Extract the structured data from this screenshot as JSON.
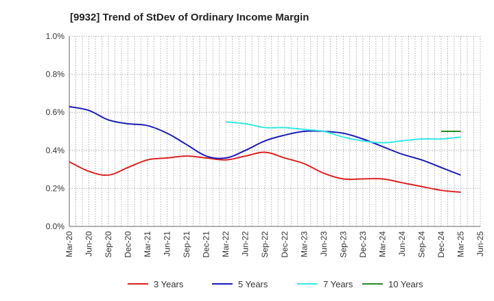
{
  "chart_data": {
    "type": "line",
    "title": "[9932]  Trend of StDev of Ordinary Income Margin",
    "xlabel": "",
    "ylabel": "",
    "ylim": [
      0,
      0.01
    ],
    "yticks": [
      {
        "value": 0.0,
        "label": "0.0%"
      },
      {
        "value": 0.002,
        "label": "0.2%"
      },
      {
        "value": 0.004,
        "label": "0.4%"
      },
      {
        "value": 0.006,
        "label": "0.6%"
      },
      {
        "value": 0.008,
        "label": "0.8%"
      },
      {
        "value": 0.01,
        "label": "1.0%"
      }
    ],
    "x_categories": [
      "Mar-20",
      "Jun-20",
      "Sep-20",
      "Dec-20",
      "Mar-21",
      "Jun-21",
      "Sep-21",
      "Dec-21",
      "Mar-22",
      "Jun-22",
      "Sep-22",
      "Dec-22",
      "Mar-23",
      "Jun-23",
      "Sep-23",
      "Dec-23",
      "Mar-24",
      "Jun-24",
      "Sep-24",
      "Dec-24",
      "Mar-25",
      "Jun-25"
    ],
    "grid": true,
    "legend_position": "bottom",
    "series": [
      {
        "name": "3 Years",
        "color": "#dd2020",
        "values": [
          0.0034,
          0.0029,
          0.0027,
          0.0031,
          0.0035,
          0.0036,
          0.0037,
          0.0036,
          0.0035,
          0.0037,
          0.0039,
          0.0036,
          0.0033,
          0.0028,
          0.0025,
          0.0025,
          0.0025,
          0.0023,
          0.0021,
          0.0019,
          0.0018,
          null
        ]
      },
      {
        "name": "5 Years",
        "color": "#1a1ab8",
        "values": [
          0.0063,
          0.0061,
          0.0056,
          0.0054,
          0.0053,
          0.0049,
          0.0043,
          0.0037,
          0.0036,
          0.004,
          0.0045,
          0.0048,
          0.005,
          0.005,
          0.0049,
          0.0046,
          0.0042,
          0.0038,
          0.0035,
          0.0031,
          0.0027,
          null
        ]
      },
      {
        "name": "7 Years",
        "color": "#33e6e6",
        "values": [
          null,
          null,
          null,
          null,
          null,
          null,
          null,
          null,
          0.0055,
          0.0054,
          0.0052,
          0.0052,
          0.0051,
          0.005,
          0.0047,
          0.0045,
          0.0044,
          0.0045,
          0.0046,
          0.0046,
          0.0047,
          null
        ]
      },
      {
        "name": "10 Years",
        "color": "#228b22",
        "values": [
          null,
          null,
          null,
          null,
          null,
          null,
          null,
          null,
          null,
          null,
          null,
          null,
          null,
          null,
          null,
          null,
          null,
          null,
          null,
          null,
          0.005,
          null
        ],
        "start_values": [
          null,
          null,
          null,
          null,
          null,
          null,
          null,
          null,
          null,
          null,
          null,
          null,
          null,
          null,
          null,
          null,
          null,
          null,
          null,
          0.005,
          null,
          null
        ]
      }
    ]
  }
}
